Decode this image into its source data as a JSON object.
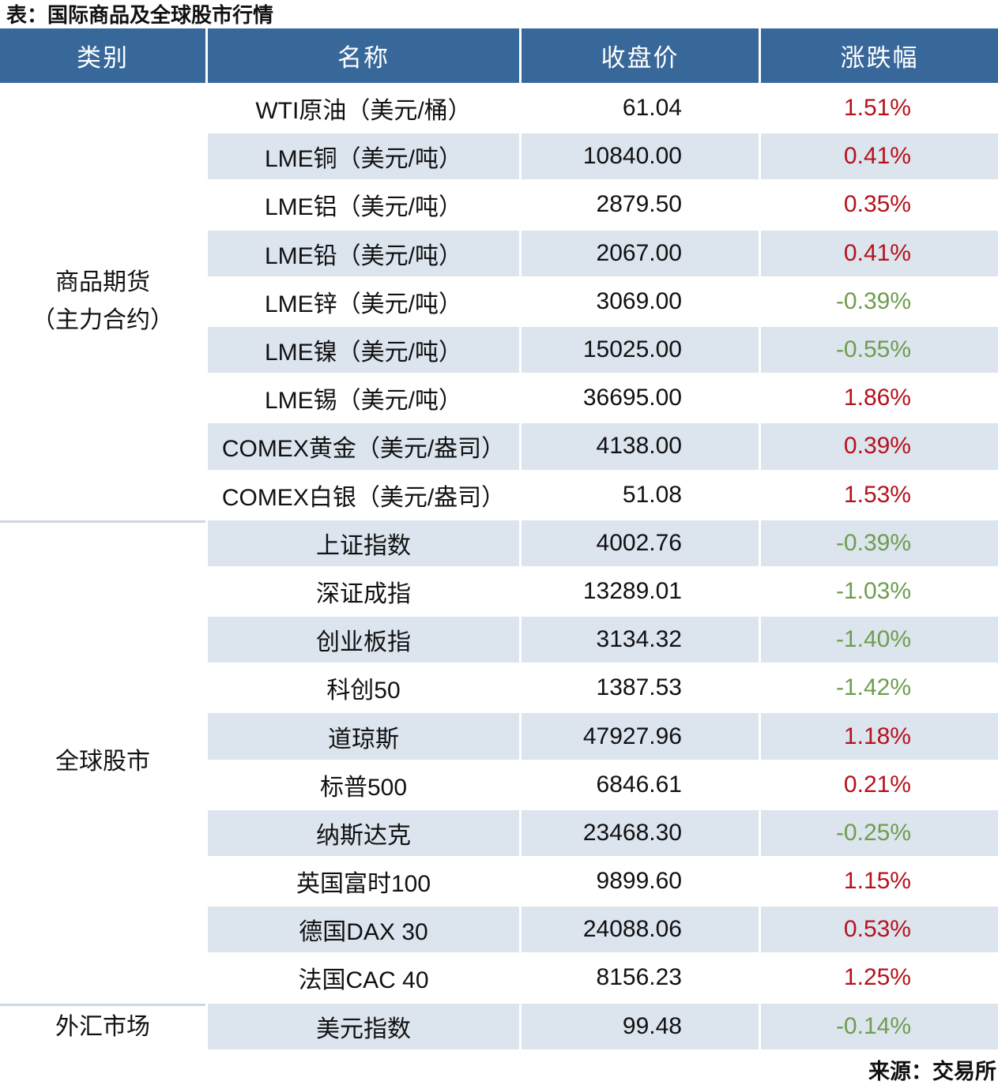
{
  "chart_data": {
    "type": "table",
    "title": "表：国际商品及全球股市行情",
    "source": "来源：交易所",
    "columns": [
      "类别",
      "名称",
      "收盘价",
      "涨跌幅"
    ],
    "groups": [
      {
        "label": "商品期货",
        "label2": "（主力合约）",
        "rows": [
          {
            "name": "WTI原油（美元/桶）",
            "close": "61.04",
            "change": "1.51%"
          },
          {
            "name": "LME铜（美元/吨）",
            "close": "10840.00",
            "change": "0.41%"
          },
          {
            "name": "LME铝（美元/吨）",
            "close": "2879.50",
            "change": "0.35%"
          },
          {
            "name": "LME铅（美元/吨）",
            "close": "2067.00",
            "change": "0.41%"
          },
          {
            "name": "LME锌（美元/吨）",
            "close": "3069.00",
            "change": "-0.39%"
          },
          {
            "name": "LME镍（美元/吨）",
            "close": "15025.00",
            "change": "-0.55%"
          },
          {
            "name": "LME锡（美元/吨）",
            "close": "36695.00",
            "change": "1.86%"
          },
          {
            "name": "COMEX黄金（美元/盎司）",
            "close": "4138.00",
            "change": "0.39%"
          },
          {
            "name": "COMEX白银（美元/盎司）",
            "close": "51.08",
            "change": "1.53%"
          }
        ]
      },
      {
        "label": "全球股市",
        "label2": "",
        "rows": [
          {
            "name": "上证指数",
            "close": "4002.76",
            "change": "-0.39%"
          },
          {
            "name": "深证成指",
            "close": "13289.01",
            "change": "-1.03%"
          },
          {
            "name": "创业板指",
            "close": "3134.32",
            "change": "-1.40%"
          },
          {
            "name": "科创50",
            "close": "1387.53",
            "change": "-1.42%"
          },
          {
            "name": "道琼斯",
            "close": "47927.96",
            "change": "1.18%"
          },
          {
            "name": "标普500",
            "close": "6846.61",
            "change": "0.21%"
          },
          {
            "name": "纳斯达克",
            "close": "23468.30",
            "change": "-0.25%"
          },
          {
            "name": "英国富时100",
            "close": "9899.60",
            "change": "1.15%"
          },
          {
            "name": "德国DAX 30",
            "close": "24088.06",
            "change": "0.53%"
          },
          {
            "name": "法国CAC 40",
            "close": "8156.23",
            "change": "1.25%"
          }
        ]
      },
      {
        "label": "外汇市场",
        "label2": "",
        "rows": [
          {
            "name": "美元指数",
            "close": "99.48",
            "change": "-0.14%"
          }
        ]
      }
    ],
    "colors": {
      "positive_change": "#b5121c",
      "negative_change": "#6f9d4f",
      "header_background": "#38689a",
      "stripe_row": "#dce4ee",
      "bottom_frame": "#3a6b9d"
    }
  }
}
